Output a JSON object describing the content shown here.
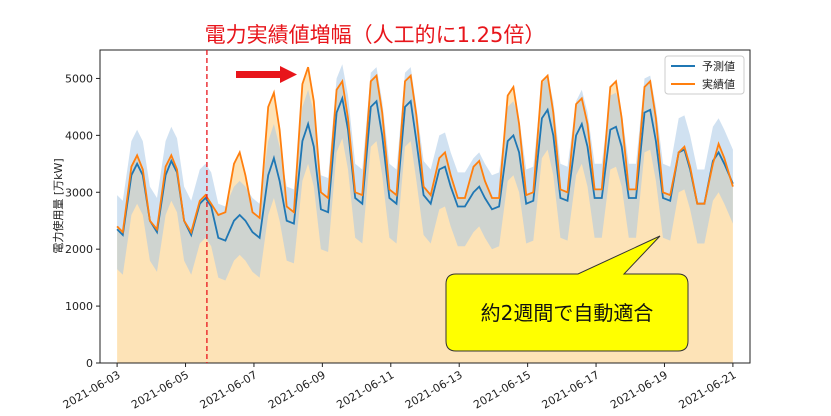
{
  "chart_data": {
    "type": "line",
    "title": "電力実績値増幅（人工的に1.25倍）",
    "ylabel": "電力使用量 [万kW]",
    "xlabel": "",
    "ylim": [
      0,
      5500
    ],
    "yticks": [
      0,
      1000,
      2000,
      3000,
      4000,
      5000
    ],
    "xlim": [
      "2021-06-02T12:00",
      "2021-06-21T12:00"
    ],
    "xticks": [
      "2021-06-03",
      "2021-06-05",
      "2021-06-07",
      "2021-06-09",
      "2021-06-11",
      "2021-06-13",
      "2021-06-15",
      "2021-06-17",
      "2021-06-19",
      "2021-06-21"
    ],
    "grid": false,
    "legend": "top-right",
    "amplification_start": "2021-06-05T15:00",
    "colors": {
      "forecast": "#1f77b4",
      "actual": "#ff7f0e",
      "actual_fill": "#fde2b3",
      "band": "#a9c9e6",
      "marker": "#e8151b"
    },
    "series": [
      {
        "name": "予測値",
        "points": [
          [
            "2021-06-03T00:00",
            2350
          ],
          [
            "2021-06-03T04:00",
            2250
          ],
          [
            "2021-06-03T10:00",
            3300
          ],
          [
            "2021-06-03T14:00",
            3500
          ],
          [
            "2021-06-03T18:00",
            3300
          ],
          [
            "2021-06-03T23:00",
            2500
          ],
          [
            "2021-06-04T04:00",
            2300
          ],
          [
            "2021-06-04T10:00",
            3300
          ],
          [
            "2021-06-04T14:00",
            3550
          ],
          [
            "2021-06-04T18:00",
            3350
          ],
          [
            "2021-06-04T23:00",
            2500
          ],
          [
            "2021-06-05T04:00",
            2250
          ],
          [
            "2021-06-05T10:00",
            2800
          ],
          [
            "2021-06-05T14:00",
            2900
          ],
          [
            "2021-06-05T18:00",
            2750
          ],
          [
            "2021-06-05T23:00",
            2200
          ],
          [
            "2021-06-06T04:00",
            2150
          ],
          [
            "2021-06-06T10:00",
            2500
          ],
          [
            "2021-06-06T14:00",
            2600
          ],
          [
            "2021-06-06T18:00",
            2500
          ],
          [
            "2021-06-06T23:00",
            2300
          ],
          [
            "2021-06-07T04:00",
            2200
          ],
          [
            "2021-06-07T10:00",
            3300
          ],
          [
            "2021-06-07T14:00",
            3600
          ],
          [
            "2021-06-07T18:00",
            3200
          ],
          [
            "2021-06-07T23:00",
            2500
          ],
          [
            "2021-06-08T04:00",
            2450
          ],
          [
            "2021-06-08T10:00",
            3900
          ],
          [
            "2021-06-08T14:00",
            4200
          ],
          [
            "2021-06-08T18:00",
            3800
          ],
          [
            "2021-06-08T23:00",
            2700
          ],
          [
            "2021-06-09T04:00",
            2650
          ],
          [
            "2021-06-09T10:00",
            4400
          ],
          [
            "2021-06-09T14:00",
            4650
          ],
          [
            "2021-06-09T18:00",
            4100
          ],
          [
            "2021-06-09T23:00",
            2900
          ],
          [
            "2021-06-10T04:00",
            2800
          ],
          [
            "2021-06-10T10:00",
            4500
          ],
          [
            "2021-06-10T14:00",
            4600
          ],
          [
            "2021-06-10T18:00",
            4000
          ],
          [
            "2021-06-10T23:00",
            2900
          ],
          [
            "2021-06-11T04:00",
            2800
          ],
          [
            "2021-06-11T10:00",
            4500
          ],
          [
            "2021-06-11T14:00",
            4600
          ],
          [
            "2021-06-11T18:00",
            3900
          ],
          [
            "2021-06-11T23:00",
            2950
          ],
          [
            "2021-06-12T04:00",
            2800
          ],
          [
            "2021-06-12T10:00",
            3400
          ],
          [
            "2021-06-12T14:00",
            3450
          ],
          [
            "2021-06-12T18:00",
            3100
          ],
          [
            "2021-06-12T23:00",
            2750
          ],
          [
            "2021-06-13T04:00",
            2750
          ],
          [
            "2021-06-13T10:00",
            3000
          ],
          [
            "2021-06-13T14:00",
            3100
          ],
          [
            "2021-06-13T18:00",
            2900
          ],
          [
            "2021-06-13T23:00",
            2700
          ],
          [
            "2021-06-14T04:00",
            2750
          ],
          [
            "2021-06-14T10:00",
            3900
          ],
          [
            "2021-06-14T14:00",
            4000
          ],
          [
            "2021-06-14T18:00",
            3700
          ],
          [
            "2021-06-14T23:00",
            2800
          ],
          [
            "2021-06-15T04:00",
            2850
          ],
          [
            "2021-06-15T10:00",
            4300
          ],
          [
            "2021-06-15T14:00",
            4450
          ],
          [
            "2021-06-15T18:00",
            4000
          ],
          [
            "2021-06-15T23:00",
            2900
          ],
          [
            "2021-06-16T04:00",
            2850
          ],
          [
            "2021-06-16T10:00",
            4000
          ],
          [
            "2021-06-16T14:00",
            4200
          ],
          [
            "2021-06-16T18:00",
            3800
          ],
          [
            "2021-06-16T23:00",
            2900
          ],
          [
            "2021-06-17T04:00",
            2900
          ],
          [
            "2021-06-17T10:00",
            4100
          ],
          [
            "2021-06-17T14:00",
            4150
          ],
          [
            "2021-06-17T18:00",
            3800
          ],
          [
            "2021-06-17T23:00",
            2900
          ],
          [
            "2021-06-18T04:00",
            2900
          ],
          [
            "2021-06-18T10:00",
            4400
          ],
          [
            "2021-06-18T14:00",
            4450
          ],
          [
            "2021-06-18T18:00",
            3900
          ],
          [
            "2021-06-18T23:00",
            2900
          ],
          [
            "2021-06-19T04:00",
            2850
          ],
          [
            "2021-06-19T10:00",
            3700
          ],
          [
            "2021-06-19T14:00",
            3750
          ],
          [
            "2021-06-19T18:00",
            3400
          ],
          [
            "2021-06-19T23:00",
            2800
          ],
          [
            "2021-06-20T04:00",
            2800
          ],
          [
            "2021-06-20T10:00",
            3550
          ],
          [
            "2021-06-20T14:00",
            3700
          ],
          [
            "2021-06-20T18:00",
            3500
          ],
          [
            "2021-06-21T00:00",
            3150
          ]
        ]
      },
      {
        "name": "実績値",
        "points": [
          [
            "2021-06-03T00:00",
            2400
          ],
          [
            "2021-06-03T04:00",
            2300
          ],
          [
            "2021-06-03T10:00",
            3450
          ],
          [
            "2021-06-03T14:00",
            3650
          ],
          [
            "2021-06-03T18:00",
            3400
          ],
          [
            "2021-06-03T23:00",
            2500
          ],
          [
            "2021-06-04T04:00",
            2350
          ],
          [
            "2021-06-04T10:00",
            3450
          ],
          [
            "2021-06-04T14:00",
            3650
          ],
          [
            "2021-06-04T18:00",
            3400
          ],
          [
            "2021-06-04T23:00",
            2500
          ],
          [
            "2021-06-05T04:00",
            2300
          ],
          [
            "2021-06-05T10:00",
            2850
          ],
          [
            "2021-06-05T14:00",
            2950
          ],
          [
            "2021-06-05T18:00",
            2800
          ],
          [
            "2021-06-05T23:00",
            2600
          ],
          [
            "2021-06-06T04:00",
            2650
          ],
          [
            "2021-06-06T10:00",
            3500
          ],
          [
            "2021-06-06T14:00",
            3700
          ],
          [
            "2021-06-06T18:00",
            3300
          ],
          [
            "2021-06-06T23:00",
            2650
          ],
          [
            "2021-06-07T04:00",
            2550
          ],
          [
            "2021-06-07T10:00",
            4500
          ],
          [
            "2021-06-07T14:00",
            4750
          ],
          [
            "2021-06-07T18:00",
            4100
          ],
          [
            "2021-06-07T23:00",
            2750
          ],
          [
            "2021-06-08T04:00",
            2650
          ],
          [
            "2021-06-08T10:00",
            4900
          ],
          [
            "2021-06-08T14:00",
            5200
          ],
          [
            "2021-06-08T18:00",
            4600
          ],
          [
            "2021-06-08T23:00",
            3000
          ],
          [
            "2021-06-09T04:00",
            2900
          ],
          [
            "2021-06-09T10:00",
            4800
          ],
          [
            "2021-06-09T14:00",
            4950
          ],
          [
            "2021-06-09T18:00",
            4300
          ],
          [
            "2021-06-09T23:00",
            3000
          ],
          [
            "2021-06-10T04:00",
            2950
          ],
          [
            "2021-06-10T10:00",
            4950
          ],
          [
            "2021-06-10T14:00",
            5050
          ],
          [
            "2021-06-10T18:00",
            4400
          ],
          [
            "2021-06-10T23:00",
            3050
          ],
          [
            "2021-06-11T04:00",
            2950
          ],
          [
            "2021-06-11T10:00",
            4950
          ],
          [
            "2021-06-11T14:00",
            5050
          ],
          [
            "2021-06-11T18:00",
            4350
          ],
          [
            "2021-06-11T23:00",
            3100
          ],
          [
            "2021-06-12T04:00",
            2950
          ],
          [
            "2021-06-12T10:00",
            3600
          ],
          [
            "2021-06-12T14:00",
            3700
          ],
          [
            "2021-06-12T18:00",
            3300
          ],
          [
            "2021-06-12T23:00",
            2900
          ],
          [
            "2021-06-13T04:00",
            2900
          ],
          [
            "2021-06-13T10:00",
            3450
          ],
          [
            "2021-06-13T14:00",
            3550
          ],
          [
            "2021-06-13T18:00",
            3200
          ],
          [
            "2021-06-13T23:00",
            2900
          ],
          [
            "2021-06-14T04:00",
            2900
          ],
          [
            "2021-06-14T10:00",
            4700
          ],
          [
            "2021-06-14T14:00",
            4850
          ],
          [
            "2021-06-14T18:00",
            4200
          ],
          [
            "2021-06-14T23:00",
            2950
          ],
          [
            "2021-06-15T04:00",
            3000
          ],
          [
            "2021-06-15T10:00",
            4950
          ],
          [
            "2021-06-15T14:00",
            5050
          ],
          [
            "2021-06-15T18:00",
            4400
          ],
          [
            "2021-06-15T23:00",
            3050
          ],
          [
            "2021-06-16T04:00",
            3000
          ],
          [
            "2021-06-16T10:00",
            4550
          ],
          [
            "2021-06-16T14:00",
            4650
          ],
          [
            "2021-06-16T18:00",
            4200
          ],
          [
            "2021-06-16T23:00",
            3050
          ],
          [
            "2021-06-17T04:00",
            3050
          ],
          [
            "2021-06-17T10:00",
            4850
          ],
          [
            "2021-06-17T14:00",
            4950
          ],
          [
            "2021-06-17T18:00",
            4300
          ],
          [
            "2021-06-17T23:00",
            3050
          ],
          [
            "2021-06-18T04:00",
            3050
          ],
          [
            "2021-06-18T10:00",
            4850
          ],
          [
            "2021-06-18T14:00",
            4950
          ],
          [
            "2021-06-18T18:00",
            4300
          ],
          [
            "2021-06-18T23:00",
            3000
          ],
          [
            "2021-06-19T04:00",
            2950
          ],
          [
            "2021-06-19T10:00",
            3700
          ],
          [
            "2021-06-19T14:00",
            3800
          ],
          [
            "2021-06-19T18:00",
            3450
          ],
          [
            "2021-06-19T23:00",
            2800
          ],
          [
            "2021-06-20T04:00",
            2800
          ],
          [
            "2021-06-20T10:00",
            3500
          ],
          [
            "2021-06-20T14:00",
            3850
          ],
          [
            "2021-06-20T18:00",
            3600
          ],
          [
            "2021-06-21T00:00",
            3100
          ]
        ]
      }
    ],
    "band_delta_high": 600,
    "band_delta_low": 700,
    "annotation": "約2週間で自動適合"
  }
}
